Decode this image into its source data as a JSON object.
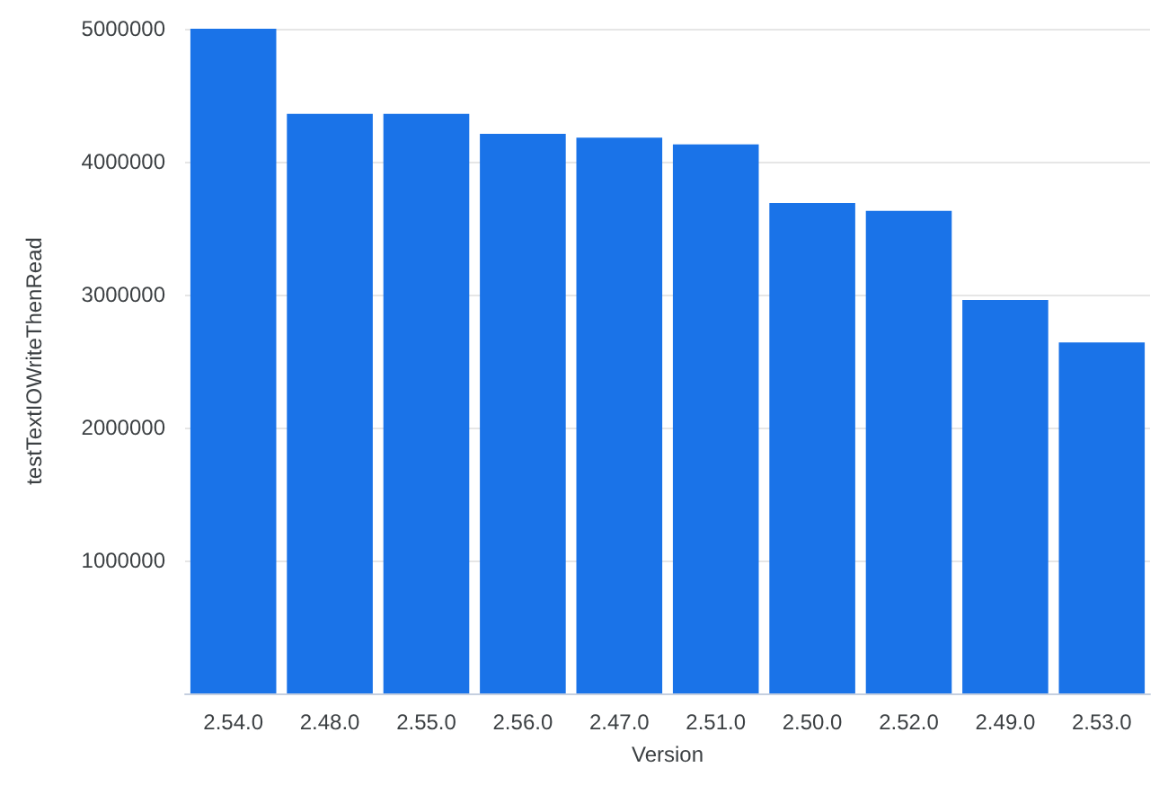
{
  "chart_data": {
    "type": "bar",
    "xlabel": "Version",
    "ylabel": "testTextIOWriteThenRead",
    "categories": [
      "2.54.0",
      "2.48.0",
      "2.55.0",
      "2.56.0",
      "2.47.0",
      "2.51.0",
      "2.50.0",
      "2.52.0",
      "2.49.0",
      "2.53.0"
    ],
    "values": [
      5000000,
      4360000,
      4360000,
      4210000,
      4180000,
      4130000,
      3690000,
      3630000,
      2960000,
      2640000
    ],
    "color": "#1a73e8",
    "ylim": [
      0,
      5000000
    ],
    "yticks": [
      {
        "value": 0,
        "label": null
      },
      1000000,
      2000000,
      3000000,
      4000000,
      5000000
    ],
    "grid": "y"
  }
}
